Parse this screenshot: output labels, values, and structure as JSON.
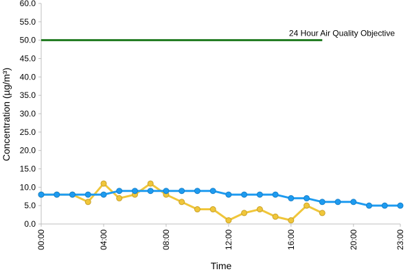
{
  "chart_data": {
    "type": "line",
    "title": "",
    "xlabel": "Time",
    "ylabel": "Concentration (µg/m³)",
    "x": [
      0,
      1,
      2,
      3,
      4,
      5,
      6,
      7,
      8,
      9,
      10,
      11,
      12,
      13,
      14,
      15,
      16,
      17,
      18,
      19,
      20,
      21,
      22,
      23
    ],
    "xlim": [
      0,
      23
    ],
    "ylim": [
      0,
      60
    ],
    "y_ticks": [
      "0.0",
      "5.0",
      "10.0",
      "15.0",
      "20.0",
      "25.0",
      "30.0",
      "35.0",
      "40.0",
      "45.0",
      "50.0",
      "55.0",
      "60.0"
    ],
    "x_ticks": [
      {
        "x": 0,
        "label": "00:00"
      },
      {
        "x": 4,
        "label": "04:00"
      },
      {
        "x": 8,
        "label": "08:00"
      },
      {
        "x": 12,
        "label": "12:00"
      },
      {
        "x": 16,
        "label": "16:00"
      },
      {
        "x": 20,
        "label": "20:00"
      },
      {
        "x": 23,
        "label": "23:00"
      }
    ],
    "grid": false,
    "series": [
      {
        "color": "#F0C63A",
        "marker_fill": "#F0C63A",
        "marker_stroke": "#C9A22A",
        "values": [
          8,
          8,
          8,
          6,
          11,
          7,
          8,
          11,
          8,
          6,
          4,
          4,
          1,
          3,
          4,
          2,
          1,
          5,
          3,
          null,
          null,
          null,
          null,
          null
        ]
      },
      {
        "color": "#1E9BF0",
        "marker_fill": "#1E9BF0",
        "marker_stroke": "#1580CC",
        "values": [
          8,
          8,
          8,
          8,
          8,
          9,
          9,
          9,
          9,
          9,
          9,
          9,
          8,
          8,
          8,
          8,
          7,
          7,
          6,
          6,
          6,
          5,
          5,
          5
        ]
      }
    ],
    "reference_line": {
      "label": "24 Hour Air Quality Objective",
      "value": 50,
      "x_start": 0,
      "x_end": 18,
      "color": "#1F7A1F"
    }
  }
}
